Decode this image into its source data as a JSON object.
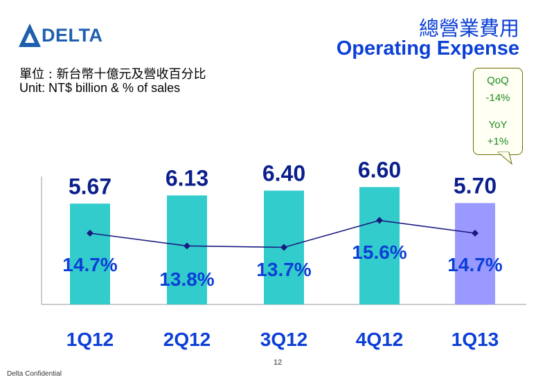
{
  "header": {
    "logo_text": "DELTA",
    "title_zh": "總營業費用",
    "title_en": "Operating Expense"
  },
  "unit": {
    "zh": "單位 : 新台幣十億元及營收百分比",
    "en": "Unit: NT$ billion & % of sales"
  },
  "callout": {
    "qoq_label": "QoQ",
    "qoq_value": "-14%",
    "yoy_label": "YoY",
    "yoy_value": "+1%"
  },
  "chart_data": {
    "type": "bar",
    "categories": [
      "1Q12",
      "2Q12",
      "3Q12",
      "4Q12",
      "1Q13"
    ],
    "series": [
      {
        "values": [
          5.67,
          6.13,
          6.4,
          6.6,
          5.7
        ],
        "labels": [
          "5.67",
          "6.13",
          "6.40",
          "6.60",
          "5.70"
        ],
        "chart": "bar"
      },
      {
        "values": [
          14.7,
          13.8,
          13.7,
          15.6,
          14.7
        ],
        "labels": [
          "14.7%",
          "13.8%",
          "13.7%",
          "15.6%",
          "14.7%"
        ],
        "chart": "line"
      }
    ],
    "colors": {
      "bar": "#33cccc",
      "bar_highlight": "#9999ff",
      "line": "#1a1a80",
      "bar_label": "#0a1f8c",
      "pct_label": "#0b3fd6",
      "category_label": "#0b3fd6"
    },
    "legend": "none",
    "grid": false
  },
  "footer": {
    "confidential": "Delta Confidential",
    "page_number": "12"
  }
}
